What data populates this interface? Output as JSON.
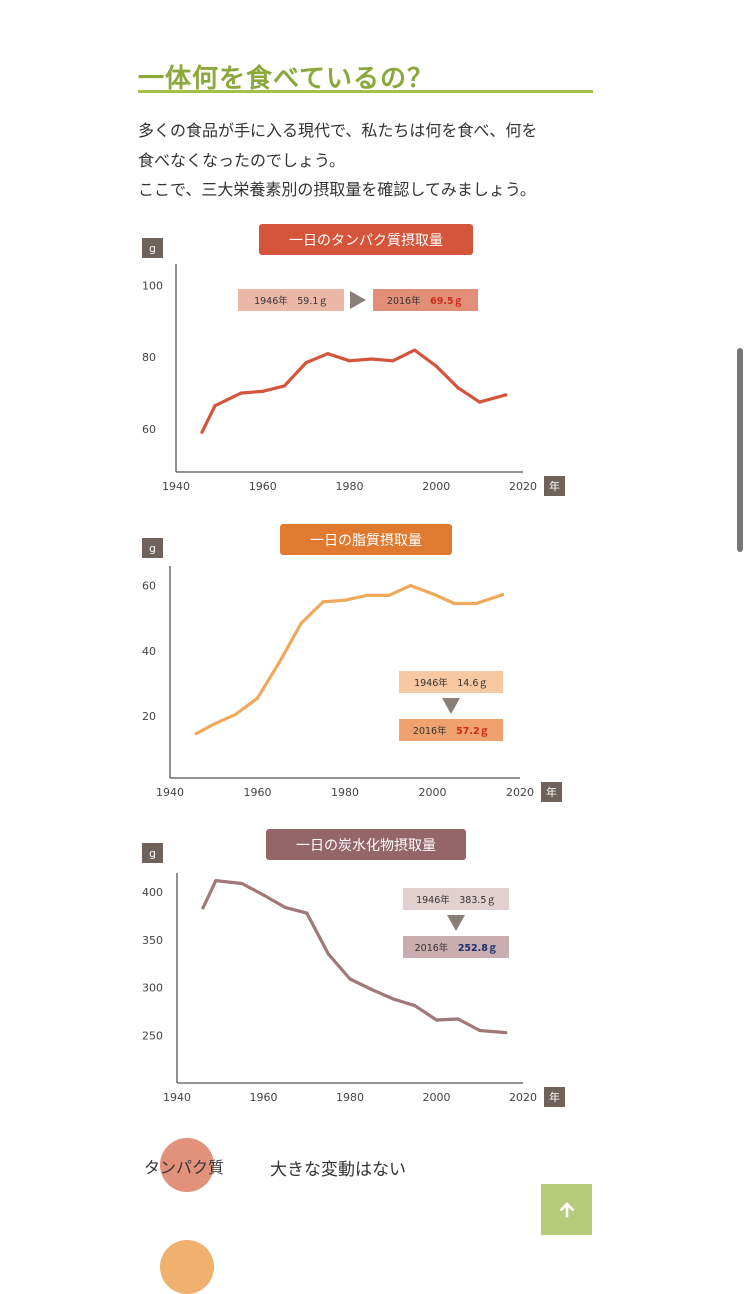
{
  "heading": "一体何を食べているの？",
  "intro": {
    "line1": "多くの食品が手に入る現代で、私たちは何を食べ、何を",
    "line2": "食べなくなったのでしょう。",
    "line3": "ここで、三大栄養素別の摂取量を確認してみましょう。"
  },
  "chart_data": [
    {
      "type": "line",
      "title": "一日のタンパク質摂取量",
      "ylabel": "g",
      "xlabel": "年",
      "xlim": [
        1940,
        2020
      ],
      "ylim": [
        48,
        106
      ],
      "xticks": [
        1940,
        1960,
        1980,
        2000,
        2020
      ],
      "yticks": [
        60,
        80,
        100
      ],
      "color": "#d4553a",
      "title_bg": "#d4553a",
      "x": [
        1946,
        1949,
        1955,
        1960,
        1965,
        1970,
        1975,
        1980,
        1985,
        1990,
        1995,
        2000,
        2005,
        2010,
        2016
      ],
      "y": [
        59.1,
        66.5,
        70,
        70.5,
        72,
        78.5,
        81,
        79,
        79.5,
        79,
        82,
        77.5,
        71.5,
        67.5,
        69.5
      ],
      "callout": {
        "layout": "horizontal",
        "start": "1946年　59.1ｇ",
        "end_year": "2016年",
        "end_value": "69.5ｇ",
        "start_bg": "#edb7a8",
        "end_bg": "#e28f78",
        "value_color": "#d12a1c"
      }
    },
    {
      "type": "line",
      "title": "一日の脂質摂取量",
      "ylabel": "g",
      "xlabel": "年",
      "xlim": [
        1940,
        2020
      ],
      "ylim": [
        1,
        66
      ],
      "xticks": [
        1940,
        1960,
        1980,
        2000,
        2020
      ],
      "yticks": [
        20,
        40,
        60
      ],
      "color": "#f0a85a",
      "title_bg": "#e07a30",
      "x": [
        1946,
        1950,
        1955,
        1960,
        1965,
        1970,
        1975,
        1980,
        1985,
        1990,
        1995,
        2000,
        2005,
        2010,
        2016
      ],
      "y": [
        14.6,
        17.5,
        20.5,
        25.5,
        36.5,
        48.5,
        55,
        55.5,
        57,
        57,
        60,
        57.5,
        54.5,
        54.5,
        57.2
      ],
      "callout": {
        "layout": "vertical",
        "start": "1946年　14.6ｇ",
        "end_year": "2016年",
        "end_value": "57.2ｇ",
        "start_bg": "#f7c8a2",
        "end_bg": "#efa26e",
        "value_color": "#d12a1c"
      }
    },
    {
      "type": "line",
      "title": "一日の炭水化物摂取量",
      "ylabel": "g",
      "xlabel": "年",
      "xlim": [
        1940,
        2020
      ],
      "ylim": [
        200,
        420
      ],
      "xticks": [
        1940,
        1960,
        1980,
        2000,
        2020
      ],
      "yticks": [
        250,
        300,
        350,
        400
      ],
      "color": "#a07878",
      "title_bg": "#94666a",
      "x": [
        1946,
        1949,
        1955,
        1960,
        1965,
        1970,
        1975,
        1980,
        1985,
        1990,
        1995,
        2000,
        2005,
        2010,
        2016
      ],
      "y": [
        383.5,
        412,
        409,
        397,
        384,
        378,
        335,
        309,
        298,
        288,
        281,
        266,
        267,
        255,
        252.8
      ],
      "callout": {
        "layout": "vertical",
        "start": "1946年　383.5ｇ",
        "end_year": "2016年",
        "end_value": "252.8ｇ",
        "start_bg": "#e2cfd0",
        "end_bg": "#c9adb0",
        "value_color": "#1b2f6e"
      }
    }
  ],
  "summary": {
    "label": "タンパク質",
    "text": "大きな変動はない",
    "bubble_color": "#e2917b"
  },
  "back_to_top": {
    "icon": "arrow-up-icon"
  }
}
